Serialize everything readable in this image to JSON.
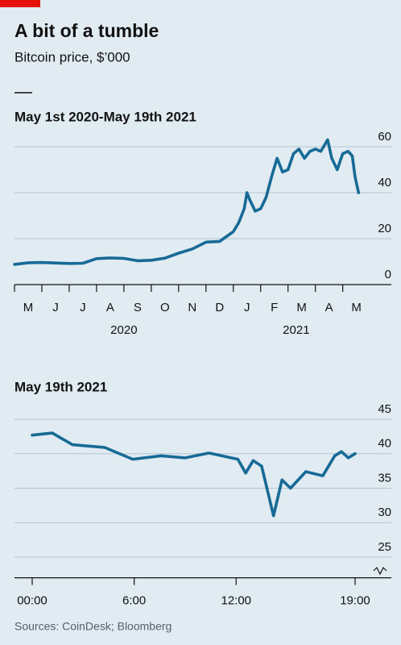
{
  "title": "A bit of a tumble",
  "subtitle": "Bitcoin price, $’000",
  "source": "Sources: CoinDesk; Bloomberg",
  "chart_data": [
    {
      "type": "line",
      "title": "May 1st 2020-May 19th 2021",
      "color": "#176a96",
      "x": [
        0,
        0.5,
        1,
        1.5,
        2,
        2.5,
        3,
        3.5,
        4,
        4.5,
        5,
        5.5,
        6,
        6.5,
        7,
        7.5,
        8,
        8.2,
        8.4,
        8.5,
        8.6,
        8.8,
        9,
        9.2,
        9.4,
        9.6,
        9.8,
        10,
        10.2,
        10.4,
        10.6,
        10.8,
        11,
        11.2,
        11.45,
        11.6,
        11.8,
        12,
        12.2,
        12.35,
        12.45,
        12.58
      ],
      "values": [
        8.8,
        9.5,
        9.6,
        9.4,
        9.2,
        9.3,
        11.3,
        11.6,
        11.4,
        10.4,
        10.6,
        11.5,
        13.7,
        15.5,
        18.5,
        18.8,
        23,
        27,
        33,
        40,
        37,
        32,
        33,
        38,
        47,
        55,
        49,
        50,
        57,
        59,
        55,
        58,
        59,
        58,
        63,
        55,
        50,
        57,
        58,
        56,
        47,
        40
      ],
      "xlim": [
        0,
        12.6
      ],
      "xticks": [
        {
          "value": 0,
          "label": "M"
        },
        {
          "value": 1,
          "label": "J"
        },
        {
          "value": 2,
          "label": "J"
        },
        {
          "value": 3,
          "label": "A"
        },
        {
          "value": 4,
          "label": "S"
        },
        {
          "value": 5,
          "label": "O"
        },
        {
          "value": 6,
          "label": "N"
        },
        {
          "value": 7,
          "label": "D"
        },
        {
          "value": 8,
          "label": "J"
        },
        {
          "value": 9,
          "label": "F"
        },
        {
          "value": 10,
          "label": "M"
        },
        {
          "value": 11,
          "label": "A"
        },
        {
          "value": 12,
          "label": "M"
        }
      ],
      "year_labels": [
        "2020",
        "2021"
      ],
      "ylim": [
        0,
        60
      ],
      "yticks": [
        0,
        20,
        40,
        60
      ],
      "grid": true
    },
    {
      "type": "line",
      "title": "May 19th 2021",
      "color": "#176a96",
      "x": [
        0,
        1.18,
        2.37,
        4.27,
        5.92,
        7.58,
        9.0,
        10.4,
        12.1,
        12.56,
        13.0,
        13.5,
        14.2,
        14.7,
        15.2,
        16.1,
        17.1,
        17.8,
        18.2,
        18.6,
        19
      ],
      "values": [
        42.7,
        43.0,
        41.3,
        40.9,
        39.2,
        39.7,
        39.4,
        40.1,
        39.2,
        37.2,
        39.0,
        38.2,
        31.0,
        36.2,
        35.0,
        37.4,
        36.8,
        39.7,
        40.3,
        39.4,
        40.0
      ],
      "xlim": [
        0,
        19
      ],
      "xticks": [
        {
          "value": 0,
          "label": "00:00"
        },
        {
          "value": 6,
          "label": "6:00"
        },
        {
          "value": 12,
          "label": "12:00"
        },
        {
          "value": 19,
          "label": "19:00"
        }
      ],
      "ylim": [
        22,
        45
      ],
      "yticks": [
        25,
        30,
        35,
        40,
        45
      ],
      "grid": true
    }
  ]
}
